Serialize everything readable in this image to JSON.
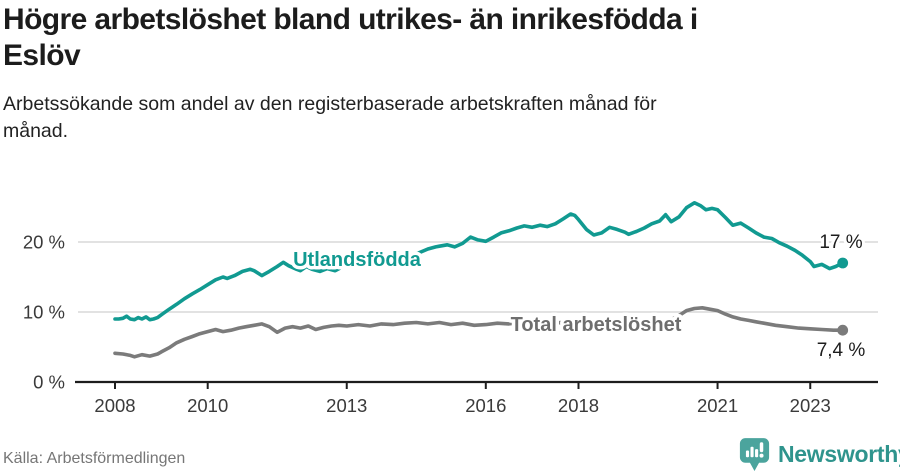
{
  "header": {
    "title": "Högre arbetslöshet bland utrikes- än inrikesfödda i Eslöv",
    "title_lines": [
      "Högre arbetslöshet bland utrikes- än inrikesfödda i",
      "Eslöv"
    ],
    "subtitle": "Arbetssökande som andel av den registerbaserade arbetskraften månad för månad.",
    "subtitle_lines": [
      "Arbetssökande som andel av den registerbaserade arbetskraften månad för",
      "månad."
    ]
  },
  "footer": {
    "source": "Källa: Arbetsförmedlingen",
    "logo_text": "Newsworthy",
    "logo_icon": "bar-chart-exclamation-bubble-icon"
  },
  "colors": {
    "teal_series": "#119a91",
    "gray_series": "#7b7b7b",
    "gray_label": "#6e6e6e",
    "grid": "#d9d9d9",
    "axis": "#1d1d1d",
    "tick_text": "#3a3a3a",
    "annotation_text": "#1d1d1d",
    "logo_icon_fill": "#4ba49d",
    "logo_text_color": "#2f948d"
  },
  "chart_data": {
    "type": "line",
    "unit": "%",
    "grid": "horizontal-only",
    "legend_position": "inline-labels-on-lines",
    "x_axis": {
      "range_years": [
        2007.2,
        2024.4
      ],
      "ticks": [
        2008,
        2010,
        2013,
        2016,
        2018,
        2021,
        2023
      ],
      "tick_labels": [
        "2008",
        "2010",
        "2013",
        "2016",
        "2018",
        "2021",
        "2023"
      ]
    },
    "y_axis": {
      "range": [
        0,
        26
      ],
      "ticks": [
        0,
        10,
        20
      ],
      "tick_labels": [
        "0 %",
        "10 %",
        "20 %"
      ]
    },
    "series": [
      {
        "name": "Utlandsfödda",
        "color": "#119a91",
        "end_value": 17,
        "end_label": "17 %",
        "points": [
          [
            2008.0,
            9.0
          ],
          [
            2008.08,
            9.0
          ],
          [
            2008.17,
            9.1
          ],
          [
            2008.25,
            9.4
          ],
          [
            2008.33,
            9.0
          ],
          [
            2008.42,
            8.9
          ],
          [
            2008.5,
            9.2
          ],
          [
            2008.58,
            9.0
          ],
          [
            2008.67,
            9.3
          ],
          [
            2008.75,
            8.9
          ],
          [
            2008.83,
            9.0
          ],
          [
            2008.92,
            9.2
          ],
          [
            2009.0,
            9.6
          ],
          [
            2009.17,
            10.4
          ],
          [
            2009.33,
            11.1
          ],
          [
            2009.5,
            11.9
          ],
          [
            2009.67,
            12.6
          ],
          [
            2009.83,
            13.2
          ],
          [
            2010.0,
            13.9
          ],
          [
            2010.17,
            14.6
          ],
          [
            2010.33,
            15.0
          ],
          [
            2010.42,
            14.8
          ],
          [
            2010.58,
            15.2
          ],
          [
            2010.75,
            15.8
          ],
          [
            2010.92,
            16.1
          ],
          [
            2011.0,
            15.9
          ],
          [
            2011.17,
            15.2
          ],
          [
            2011.33,
            15.8
          ],
          [
            2011.5,
            16.5
          ],
          [
            2011.63,
            17.1
          ],
          [
            2011.75,
            16.6
          ],
          [
            2011.92,
            16.1
          ],
          [
            2012.0,
            15.9
          ],
          [
            2012.13,
            16.5
          ],
          [
            2012.25,
            16.1
          ],
          [
            2012.42,
            15.8
          ],
          [
            2012.58,
            16.2
          ],
          [
            2012.75,
            15.9
          ],
          [
            2012.92,
            16.5
          ],
          [
            2013.0,
            16.9
          ],
          [
            2013.17,
            16.5
          ],
          [
            2013.33,
            16.6
          ],
          [
            2013.5,
            16.7
          ],
          [
            2013.67,
            16.9
          ],
          [
            2013.83,
            17.1
          ],
          [
            2014.0,
            17.4
          ],
          [
            2014.25,
            17.8
          ],
          [
            2014.5,
            18.3
          ],
          [
            2014.75,
            19.0
          ],
          [
            2014.92,
            19.3
          ],
          [
            2015.0,
            19.4
          ],
          [
            2015.17,
            19.6
          ],
          [
            2015.33,
            19.3
          ],
          [
            2015.5,
            19.8
          ],
          [
            2015.67,
            20.7
          ],
          [
            2015.83,
            20.3
          ],
          [
            2016.0,
            20.1
          ],
          [
            2016.17,
            20.7
          ],
          [
            2016.33,
            21.3
          ],
          [
            2016.5,
            21.6
          ],
          [
            2016.67,
            22.0
          ],
          [
            2016.83,
            22.3
          ],
          [
            2017.0,
            22.1
          ],
          [
            2017.17,
            22.4
          ],
          [
            2017.33,
            22.2
          ],
          [
            2017.5,
            22.6
          ],
          [
            2017.67,
            23.3
          ],
          [
            2017.83,
            24.0
          ],
          [
            2017.92,
            23.8
          ],
          [
            2018.0,
            23.2
          ],
          [
            2018.17,
            21.8
          ],
          [
            2018.33,
            21.0
          ],
          [
            2018.5,
            21.3
          ],
          [
            2018.67,
            22.1
          ],
          [
            2018.83,
            21.8
          ],
          [
            2019.0,
            21.4
          ],
          [
            2019.08,
            21.1
          ],
          [
            2019.25,
            21.5
          ],
          [
            2019.42,
            22.0
          ],
          [
            2019.58,
            22.6
          ],
          [
            2019.75,
            23.0
          ],
          [
            2019.88,
            23.9
          ],
          [
            2020.0,
            22.9
          ],
          [
            2020.17,
            23.6
          ],
          [
            2020.33,
            24.9
          ],
          [
            2020.5,
            25.6
          ],
          [
            2020.63,
            25.2
          ],
          [
            2020.75,
            24.6
          ],
          [
            2020.88,
            24.8
          ],
          [
            2021.0,
            24.6
          ],
          [
            2021.17,
            23.5
          ],
          [
            2021.33,
            22.4
          ],
          [
            2021.5,
            22.7
          ],
          [
            2021.67,
            22.0
          ],
          [
            2021.83,
            21.3
          ],
          [
            2022.0,
            20.7
          ],
          [
            2022.17,
            20.5
          ],
          [
            2022.33,
            19.9
          ],
          [
            2022.5,
            19.4
          ],
          [
            2022.67,
            18.8
          ],
          [
            2022.83,
            18.1
          ],
          [
            2023.0,
            17.2
          ],
          [
            2023.08,
            16.5
          ],
          [
            2023.25,
            16.8
          ],
          [
            2023.42,
            16.2
          ],
          [
            2023.55,
            16.5
          ],
          [
            2023.7,
            17.0
          ]
        ]
      },
      {
        "name": "Total arbetslöshet",
        "color": "#7b7b7b",
        "end_value": 7.4,
        "end_label": "7,4 %",
        "points": [
          [
            2008.0,
            4.1
          ],
          [
            2008.17,
            4.0
          ],
          [
            2008.33,
            3.8
          ],
          [
            2008.42,
            3.6
          ],
          [
            2008.58,
            3.9
          ],
          [
            2008.75,
            3.7
          ],
          [
            2008.92,
            4.0
          ],
          [
            2009.0,
            4.3
          ],
          [
            2009.17,
            4.9
          ],
          [
            2009.33,
            5.6
          ],
          [
            2009.5,
            6.1
          ],
          [
            2009.67,
            6.5
          ],
          [
            2009.83,
            6.9
          ],
          [
            2010.0,
            7.2
          ],
          [
            2010.17,
            7.5
          ],
          [
            2010.33,
            7.2
          ],
          [
            2010.5,
            7.4
          ],
          [
            2010.67,
            7.7
          ],
          [
            2010.83,
            7.9
          ],
          [
            2011.0,
            8.1
          ],
          [
            2011.17,
            8.3
          ],
          [
            2011.33,
            7.9
          ],
          [
            2011.5,
            7.1
          ],
          [
            2011.67,
            7.7
          ],
          [
            2011.83,
            7.9
          ],
          [
            2012.0,
            7.7
          ],
          [
            2012.17,
            8.0
          ],
          [
            2012.33,
            7.5
          ],
          [
            2012.5,
            7.8
          ],
          [
            2012.67,
            8.0
          ],
          [
            2012.83,
            8.1
          ],
          [
            2013.0,
            8.0
          ],
          [
            2013.25,
            8.2
          ],
          [
            2013.5,
            8.0
          ],
          [
            2013.75,
            8.3
          ],
          [
            2014.0,
            8.2
          ],
          [
            2014.25,
            8.4
          ],
          [
            2014.5,
            8.5
          ],
          [
            2014.75,
            8.3
          ],
          [
            2015.0,
            8.5
          ],
          [
            2015.25,
            8.2
          ],
          [
            2015.5,
            8.4
          ],
          [
            2015.75,
            8.1
          ],
          [
            2016.0,
            8.2
          ],
          [
            2016.25,
            8.4
          ],
          [
            2016.5,
            8.3
          ],
          [
            2016.75,
            8.5
          ],
          [
            2017.0,
            8.3
          ],
          [
            2017.25,
            8.5
          ],
          [
            2017.5,
            8.4
          ],
          [
            2017.75,
            8.6
          ],
          [
            2018.0,
            8.4
          ],
          [
            2018.25,
            8.2
          ],
          [
            2018.5,
            8.4
          ],
          [
            2018.75,
            8.3
          ],
          [
            2019.0,
            8.2
          ],
          [
            2019.25,
            8.4
          ],
          [
            2019.5,
            8.5
          ],
          [
            2019.75,
            8.7
          ],
          [
            2020.0,
            8.9
          ],
          [
            2020.17,
            9.5
          ],
          [
            2020.33,
            10.2
          ],
          [
            2020.5,
            10.5
          ],
          [
            2020.67,
            10.6
          ],
          [
            2020.83,
            10.4
          ],
          [
            2021.0,
            10.2
          ],
          [
            2021.17,
            9.7
          ],
          [
            2021.33,
            9.3
          ],
          [
            2021.5,
            9.0
          ],
          [
            2021.67,
            8.8
          ],
          [
            2021.83,
            8.6
          ],
          [
            2022.0,
            8.4
          ],
          [
            2022.25,
            8.1
          ],
          [
            2022.5,
            7.9
          ],
          [
            2022.75,
            7.7
          ],
          [
            2023.0,
            7.6
          ],
          [
            2023.25,
            7.5
          ],
          [
            2023.5,
            7.4
          ],
          [
            2023.7,
            7.4
          ]
        ]
      }
    ]
  }
}
